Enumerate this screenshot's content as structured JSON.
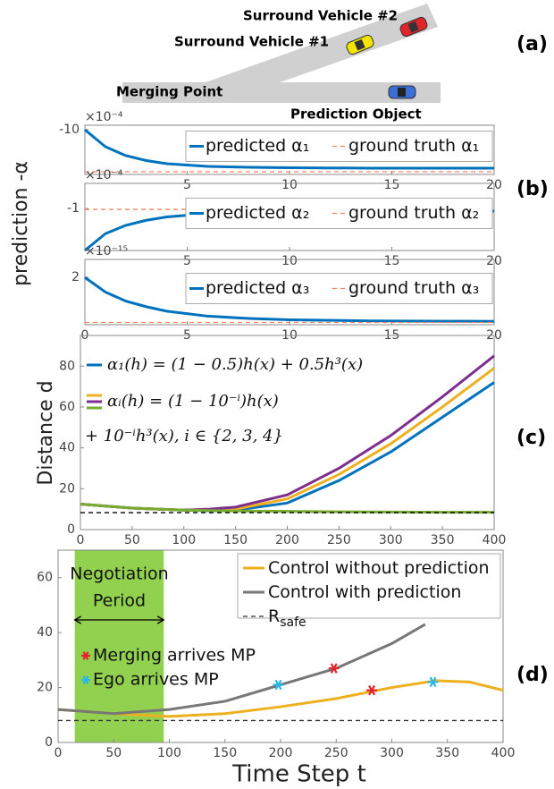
{
  "panel_a": {
    "vehicle_2": "Surround Vehicle #2",
    "vehicle_1": "Surround Vehicle #1",
    "merging_point": "Merging Point",
    "prediction_object": "Prediction Object"
  },
  "panel_labels": [
    "(a)",
    "(b)",
    "(c)",
    "(d)"
  ],
  "b_ylabel": "prediction -α",
  "chart_data": [
    {
      "type": "line",
      "y_multiplier": "×10⁻⁴",
      "x": [
        0,
        1,
        2,
        3,
        4,
        6,
        8,
        10,
        14,
        20
      ],
      "xlim": [
        0,
        20
      ],
      "xticks": [
        5,
        10,
        15,
        20
      ],
      "ylim": [
        -11,
        -9.9
      ],
      "yticks": [
        -10
      ],
      "series": [
        {
          "name": "predicted α₁",
          "color": "#0072bd",
          "values": [
            -10,
            -10.38,
            -10.58,
            -10.69,
            -10.76,
            -10.82,
            -10.84,
            -10.85,
            -10.86,
            -10.86
          ]
        },
        {
          "name": "ground truth α₁",
          "color": "#f4845f",
          "dash": true,
          "values": [
            -10.94,
            -10.94,
            -10.94,
            -10.94,
            -10.94,
            -10.94,
            -10.94,
            -10.94,
            -10.94,
            -10.94
          ]
        }
      ]
    },
    {
      "type": "line",
      "y_multiplier": "×10⁻⁴",
      "x": [
        0,
        1,
        2,
        3,
        4,
        6,
        8,
        10,
        14,
        20
      ],
      "xlim": [
        0,
        20
      ],
      "xticks": [
        5,
        10,
        15,
        20
      ],
      "ylim": [
        -1.5,
        -0.7
      ],
      "yticks": [
        -1
      ],
      "series": [
        {
          "name": "predicted α₂",
          "color": "#0072bd",
          "values": [
            -1.5,
            -1.3,
            -1.2,
            -1.14,
            -1.1,
            -1.06,
            -1.05,
            -1.04,
            -1.03,
            -1.03
          ]
        },
        {
          "name": "ground truth α₂",
          "color": "#f4845f",
          "dash": true,
          "values": [
            -1.01,
            -1.01,
            -1.01,
            -1.01,
            -1.01,
            -1.01,
            -1.01,
            -1.01,
            -1.01,
            -1.01
          ]
        }
      ]
    },
    {
      "type": "line",
      "y_multiplier": "×10⁻¹⁵",
      "x": [
        0,
        1,
        2,
        3,
        4,
        6,
        8,
        10,
        14,
        20
      ],
      "xlim": [
        0,
        20
      ],
      "xticks": [
        0,
        5,
        10,
        15,
        20
      ],
      "ylim": [
        -0.1,
        2.8
      ],
      "yticks": [
        2
      ],
      "series": [
        {
          "name": "predicted α₃",
          "color": "#0072bd",
          "values": [
            2,
            1.35,
            0.95,
            0.7,
            0.5,
            0.28,
            0.18,
            0.12,
            0.07,
            0.05
          ]
        },
        {
          "name": "ground truth α₃",
          "color": "#f4845f",
          "dash": true,
          "values": [
            0,
            0,
            0,
            0,
            0,
            0,
            0,
            0,
            0,
            0
          ]
        }
      ]
    },
    {
      "type": "line",
      "ylabel": "Distance d",
      "x": [
        0,
        50,
        100,
        125,
        150,
        200,
        250,
        300,
        350,
        400
      ],
      "xlim": [
        0,
        400
      ],
      "xticks": [
        0,
        50,
        100,
        150,
        200,
        250,
        300,
        350,
        400
      ],
      "ylim": [
        0,
        95
      ],
      "yticks": [
        0,
        20,
        40,
        60,
        80
      ],
      "series": [
        {
          "name": "α₁(h) = (1 − 0.5)h(x) + 0.5h³(x)",
          "color": "#0072bd",
          "values": [
            12.5,
            10.5,
            9.5,
            9.2,
            9.5,
            13,
            24,
            38,
            55,
            72
          ]
        },
        {
          "color": "#edb120",
          "values": [
            12.5,
            10.5,
            9.5,
            9.5,
            10,
            15,
            27,
            42,
            60,
            79
          ]
        },
        {
          "color": "#7e2f8e",
          "values": [
            12.5,
            10.5,
            9.5,
            10,
            11,
            17,
            30,
            46,
            65,
            85
          ]
        },
        {
          "color": "#77ac30",
          "values": [
            12.5,
            10.5,
            9.5,
            9.3,
            9.1,
            8.9,
            8.7,
            8.6,
            8.5,
            8.5
          ]
        },
        {
          "color": "#000000",
          "dash": true,
          "values": [
            8.3,
            8.3,
            8.3,
            8.3,
            8.3,
            8.3,
            8.3,
            8.3,
            8.3,
            8.3
          ]
        }
      ],
      "legend_extra": [
        "αᵢ(h) = (1 − 10⁻ⁱ)h(x)",
        "+ 10⁻ⁱh³(x), i ∈ {2, 3, 4}"
      ]
    },
    {
      "type": "line",
      "xlabel": "Time Step t",
      "xlim": [
        0,
        400
      ],
      "xticks": [
        0,
        50,
        100,
        150,
        200,
        250,
        300,
        350,
        400
      ],
      "ylim": [
        0,
        70
      ],
      "yticks": [
        0,
        20,
        40,
        60
      ],
      "shade": [
        15,
        95
      ],
      "shade_color": "#92d050",
      "shade_text": [
        "Negotiation",
        "Period"
      ],
      "series": [
        {
          "name": "Control without prediction",
          "color": "#edb120",
          "x": [
            0,
            50,
            100,
            150,
            200,
            250,
            300,
            340,
            370,
            400
          ],
          "values": [
            12,
            10.5,
            9.5,
            10.5,
            13,
            16,
            20,
            22.5,
            22,
            19
          ]
        },
        {
          "name": "Control with prediction",
          "color": "#777777",
          "x": [
            0,
            50,
            100,
            150,
            200,
            250,
            300,
            330
          ],
          "values": [
            12,
            10.5,
            12,
            15,
            21,
            27,
            36,
            43
          ]
        },
        {
          "name": "R",
          "name_sub": "safe",
          "color": "#333333",
          "dash": true,
          "x": [
            0,
            400
          ],
          "values": [
            8,
            8
          ]
        },
        {
          "type": "scatter",
          "name": "Merging arrives MP",
          "color": "#e3242b",
          "x": [
            248,
            282
          ],
          "values": [
            27,
            19
          ]
        },
        {
          "type": "scatter",
          "name": "Ego arrives MP",
          "color": "#29b6e8",
          "x": [
            198,
            337
          ],
          "values": [
            21,
            22
          ]
        }
      ]
    }
  ]
}
